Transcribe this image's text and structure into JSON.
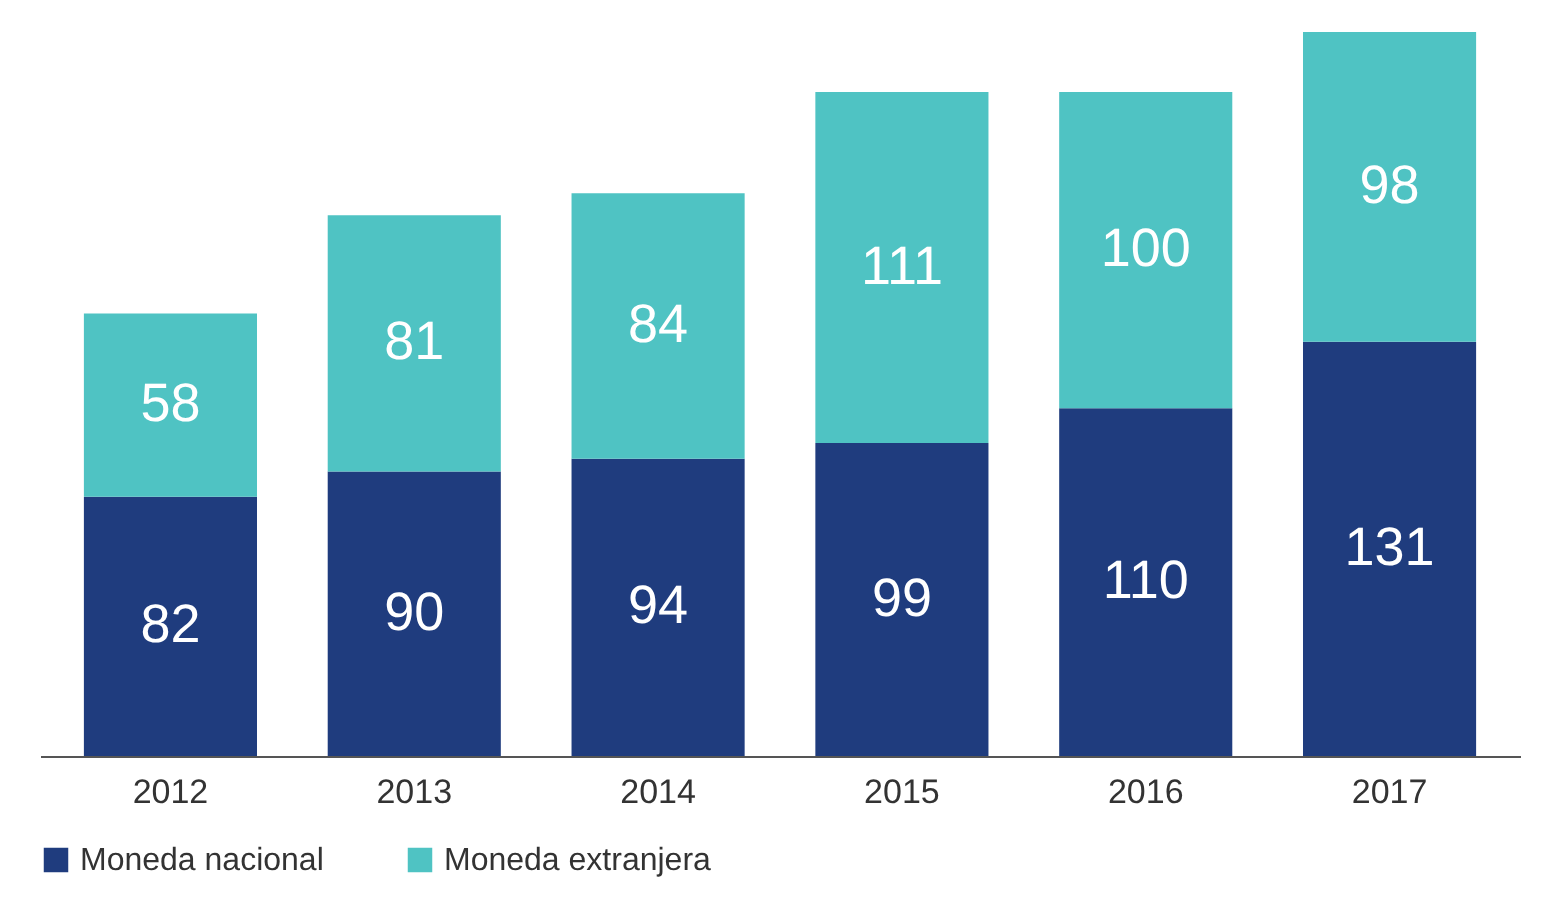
{
  "chart_data": {
    "type": "bar",
    "stacked": true,
    "data_labels": true,
    "legend": "bottom",
    "grid": false,
    "categories": [
      "2012",
      "2013",
      "2014",
      "2015",
      "2016",
      "2017"
    ],
    "series": [
      {
        "name": "Moneda nacional",
        "color": "#1f3c7e",
        "values": [
          82,
          90,
          94,
          99,
          110,
          131
        ]
      },
      {
        "name": "Moneda extranjera",
        "color": "#4fc3c3",
        "values": [
          58,
          81,
          84,
          111,
          100,
          98
        ]
      }
    ]
  }
}
